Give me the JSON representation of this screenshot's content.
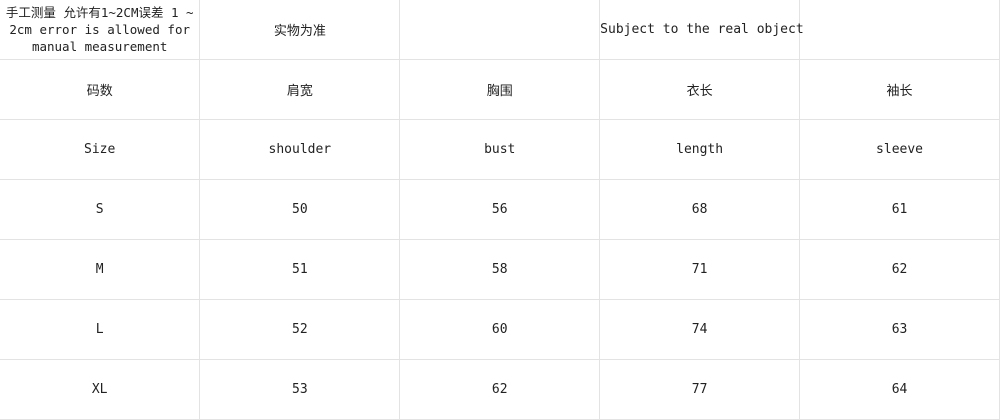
{
  "header_row": {
    "note": "手工测量 允许有1~2CM误差 1 ~ 2cm error is allowed for manual measurement",
    "cn_subject": "实物为准",
    "empty1": "",
    "en_subject": "Subject to the real object",
    "empty2": ""
  },
  "columns_cn": [
    "码数",
    "肩宽",
    "胸围",
    "衣长",
    "袖长"
  ],
  "columns_en": [
    "Size",
    "shoulder",
    "bust",
    "length",
    "sleeve"
  ],
  "rows": [
    [
      "S",
      "50",
      "56",
      "68",
      "61"
    ],
    [
      "M",
      "51",
      "58",
      "71",
      "62"
    ],
    [
      "L",
      "52",
      "60",
      "74",
      "63"
    ],
    [
      "XL",
      "53",
      "62",
      "77",
      "64"
    ]
  ]
}
